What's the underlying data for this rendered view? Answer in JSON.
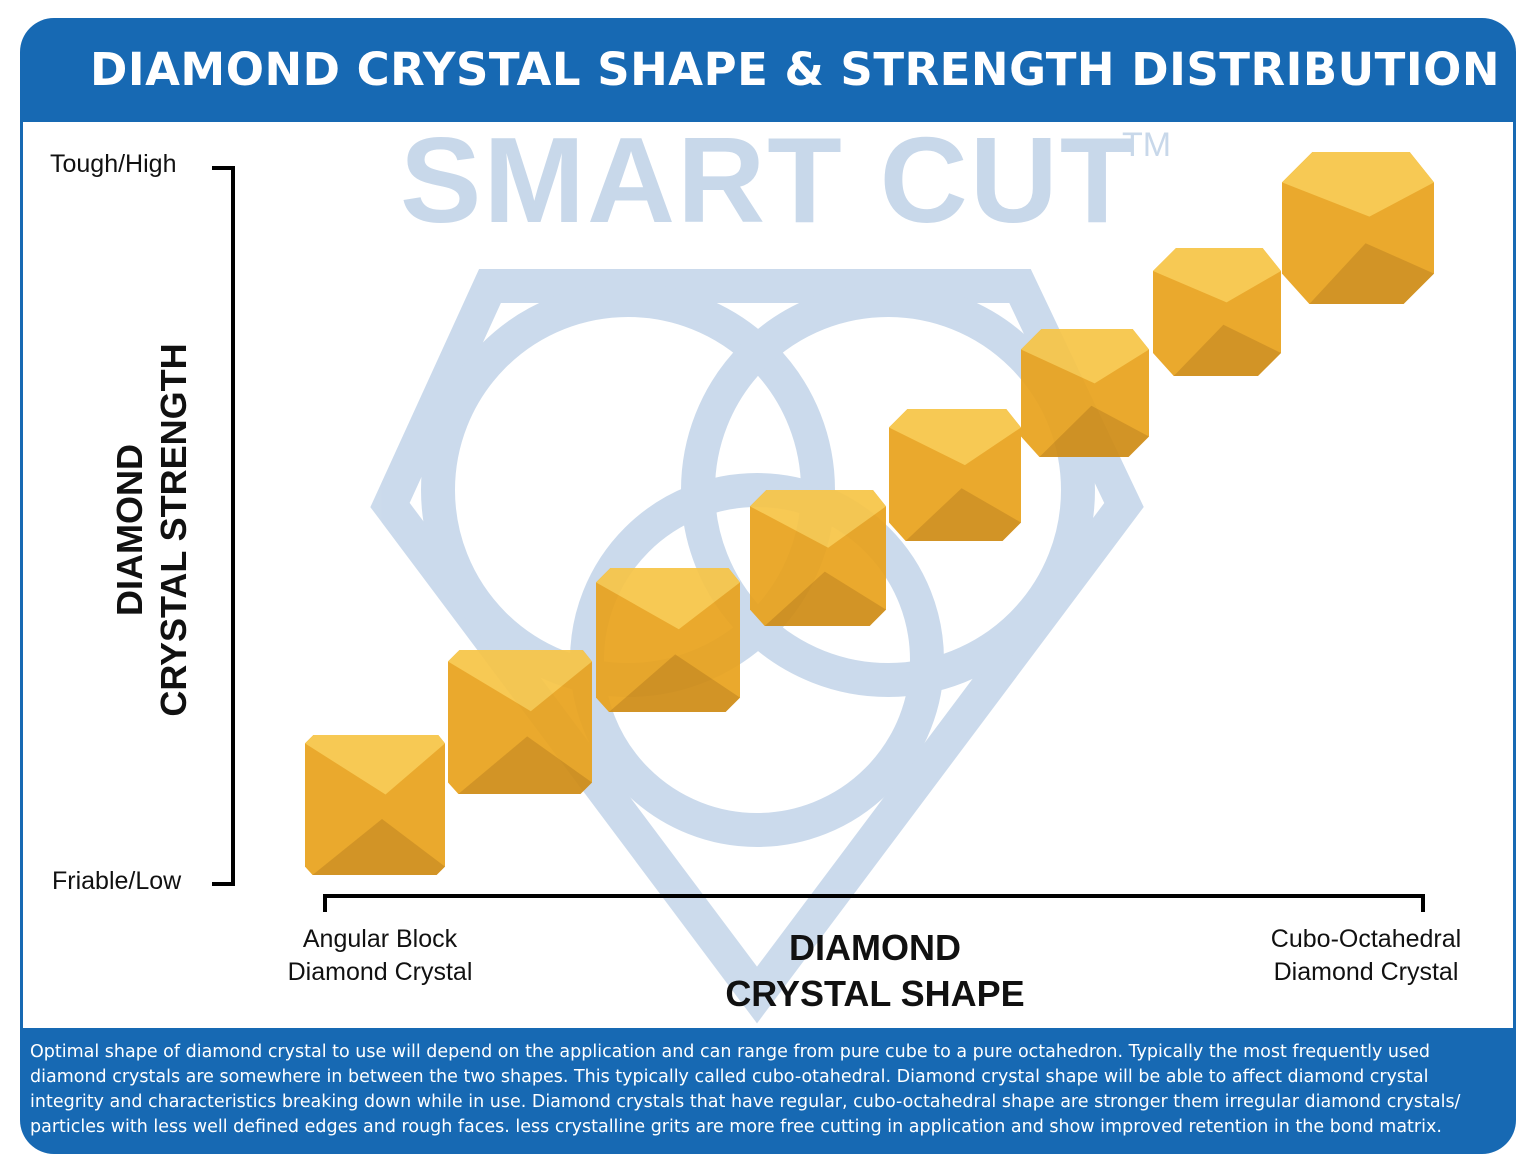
{
  "header": {
    "title": "DIAMOND CRYSTAL SHAPE & STRENGTH DISTRIBUTION"
  },
  "watermark": {
    "text": "SMART CUT",
    "trademark": "TM"
  },
  "y_axis": {
    "title_line1": "DIAMOND",
    "title_line2": "CRYSTAL STRENGTH",
    "top_label": "Tough/High",
    "bottom_label": "Friable/Low"
  },
  "x_axis": {
    "title_line1": "DIAMOND",
    "title_line2": "CRYSTAL SHAPE",
    "left_label_line1": "Angular Block",
    "left_label_line2": "Diamond Crystal",
    "right_label_line1": "Cubo-Octahedral",
    "right_label_line2": "Diamond Crystal"
  },
  "crystals": {
    "count": 9,
    "color": "#e9a31e",
    "highlight": "#f7c548",
    "shadow": "#b97a10"
  },
  "footer": {
    "text": "Optimal shape of diamond crystal to use will depend on the application and can range from pure cube to a pure octahedron. Typically the most frequently used diamond crystals are somewhere in between the two shapes. This typically called cubo-otahedral. Diamond crystal shape will be able to affect diamond crystal integrity and characteristics breaking down while in use. Diamond crystals that have regular, cubo-octahedral shape are stronger them irregular diamond crystals/ particles with less well defined edges and rough faces. less crystalline grits are more free cutting in application and show improved retention in the bond matrix."
  },
  "colors": {
    "brand_blue": "#1769b3",
    "watermark": "#c8d8ea"
  }
}
